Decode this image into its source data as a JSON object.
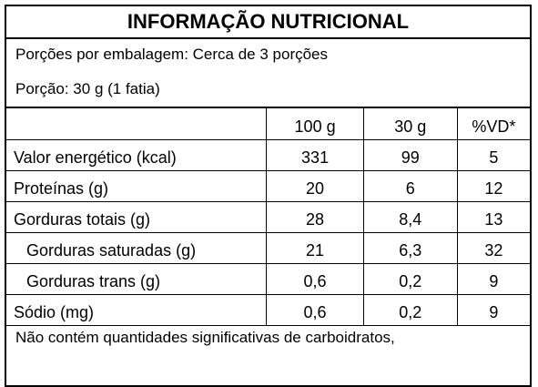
{
  "title": "INFORMAÇÃO NUTRICIONAL",
  "servings_per_package": "Porções por embalagem: Cerca de 3 porções",
  "serving_size": "Porção: 30 g (1 fatia)",
  "table": {
    "headers": [
      "",
      "100 g",
      "30 g",
      "%VD*"
    ],
    "rows": [
      {
        "label": "Valor energético (kcal)",
        "per100": "331",
        "per30": "99",
        "vd": "5",
        "indent": false
      },
      {
        "label": "Proteínas (g)",
        "per100": "20",
        "per30": "6",
        "vd": "12",
        "indent": false
      },
      {
        "label": "Gorduras totais (g)",
        "per100": "28",
        "per30": "8,4",
        "vd": "13",
        "indent": false
      },
      {
        "label": "Gorduras saturadas (g)",
        "per100": "21",
        "per30": "6,3",
        "vd": "32",
        "indent": true
      },
      {
        "label": "Gorduras trans (g)",
        "per100": "0,6",
        "per30": "0,2",
        "vd": "9",
        "indent": true
      },
      {
        "label": "Sódio (mg)",
        "per100": "0,6",
        "per30": "0,2",
        "vd": "9",
        "indent": false
      }
    ]
  },
  "footer": "Não contém quantidades significativas de carboidratos,"
}
